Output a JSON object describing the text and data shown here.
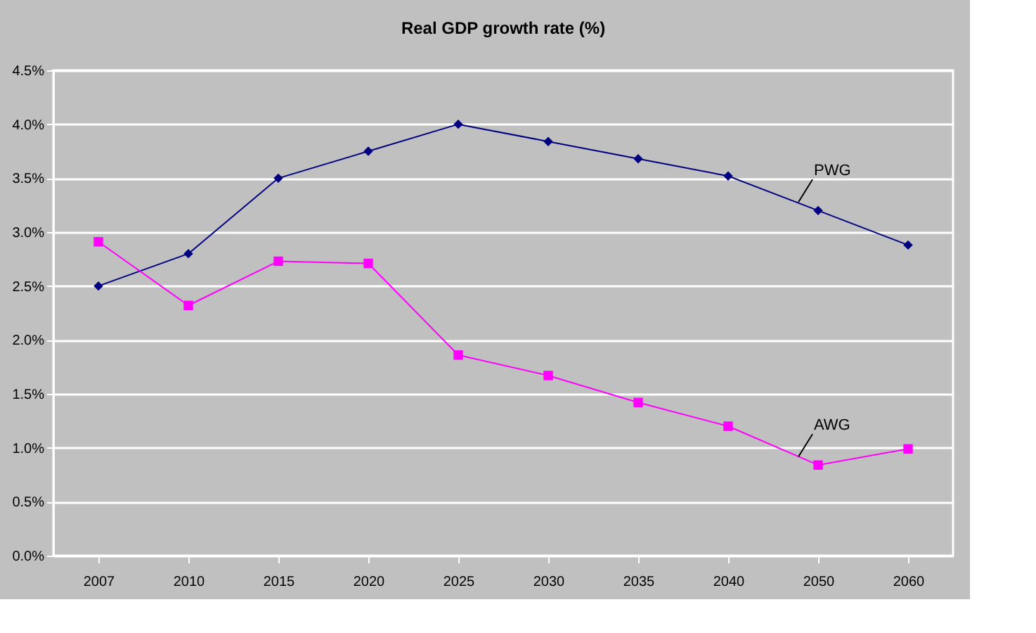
{
  "chart_data": {
    "type": "line",
    "title": "Real GDP growth rate (%)",
    "categories": [
      "2007",
      "2010",
      "2015",
      "2020",
      "2025",
      "2030",
      "2035",
      "2040",
      "2050",
      "2060"
    ],
    "series": [
      {
        "name": "PWG",
        "color": "#000080",
        "marker": "diamond",
        "values": [
          2.5,
          2.8,
          3.5,
          3.75,
          4.0,
          3.84,
          3.68,
          3.52,
          3.2,
          2.88
        ]
      },
      {
        "name": "AWG",
        "color": "#ff00ff",
        "marker": "square",
        "values": [
          2.91,
          2.32,
          2.73,
          2.71,
          1.86,
          1.67,
          1.42,
          1.2,
          0.84,
          0.99
        ]
      }
    ],
    "ylim": [
      0,
      4.5
    ],
    "yticks": [
      {
        "value": 0,
        "label": "0.0%"
      },
      {
        "value": 0.5,
        "label": "0.5%"
      },
      {
        "value": 1,
        "label": "1.0%"
      },
      {
        "value": 1.5,
        "label": "1.5%"
      },
      {
        "value": 2,
        "label": "2.0%"
      },
      {
        "value": 2.5,
        "label": "2.5%"
      },
      {
        "value": 3,
        "label": "3.0%"
      },
      {
        "value": 3.5,
        "label": "3.5%"
      },
      {
        "value": 4,
        "label": "4.0%"
      },
      {
        "value": 4.5,
        "label": "4.5%"
      }
    ],
    "grid": "y",
    "legend": false,
    "line_style": "solid"
  }
}
